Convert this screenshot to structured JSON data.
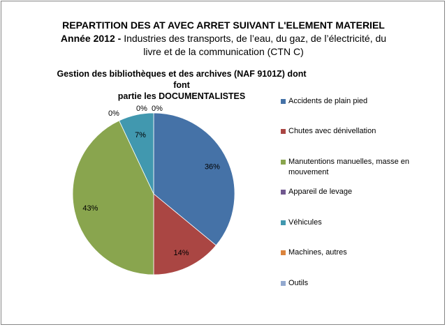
{
  "header": {
    "title": "REPARTITION DES AT AVEC ARRET SUIVANT L'ELEMENT MATERIEL",
    "year_label": "Année 2012  -",
    "industry_line1": "Industries des transports,  de l’eau, du gaz, de l’électricité, du",
    "industry_line2": "livre et de la communication (CTN C)",
    "subtitle_line1": "Gestion des bibliothèques et des archives (NAF 9101Z) dont font",
    "subtitle_line2": "partie les DOCUMENTALISTES"
  },
  "chart_data": {
    "type": "pie",
    "unit": "%",
    "legend_position": "right",
    "slices": [
      {
        "label": "Accidents de plain pied",
        "value": 36,
        "data_label": "36%",
        "color": "#4572A7"
      },
      {
        "label": "Chutes avec dénivellation",
        "value": 14,
        "data_label": "14%",
        "color": "#AA4643"
      },
      {
        "label": "Manutentions manuelles, masse en mouvement",
        "value": 43,
        "data_label": "43%",
        "color": "#89A54E"
      },
      {
        "label": "Appareil de levage",
        "value": 0,
        "data_label": "0%",
        "color": "#71588F"
      },
      {
        "label": "Véhicules",
        "value": 7,
        "data_label": "7%",
        "color": "#4198AF"
      },
      {
        "label": "Machines, autres",
        "value": 0,
        "data_label": "0%",
        "color": "#DB843D"
      },
      {
        "label": "Outils",
        "value": 0,
        "data_label": "0%",
        "color": "#93A9CF"
      }
    ]
  }
}
